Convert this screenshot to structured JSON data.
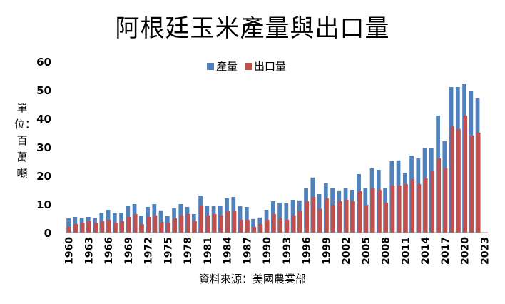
{
  "chart_data": {
    "type": "bar",
    "title": "阿根廷玉米產量與出口量",
    "ylabel": "單位：百萬噸",
    "source": "資料來源：美國農業部",
    "ylim": [
      0,
      60
    ],
    "yticks": [
      0,
      10,
      20,
      30,
      40,
      50,
      60
    ],
    "x_tick_labels": [
      "1960",
      "1963",
      "1966",
      "1969",
      "1972",
      "1975",
      "1978",
      "1981",
      "1984",
      "1987",
      "1990",
      "1993",
      "1996",
      "1999",
      "2002",
      "2005",
      "2008",
      "2011",
      "2014",
      "2017",
      "2020",
      "2023"
    ],
    "legend_position": "top",
    "categories": [
      "1960",
      "1961",
      "1962",
      "1963",
      "1964",
      "1965",
      "1966",
      "1967",
      "1968",
      "1969",
      "1970",
      "1971",
      "1972",
      "1973",
      "1974",
      "1975",
      "1976",
      "1977",
      "1978",
      "1979",
      "1980",
      "1981",
      "1982",
      "1983",
      "1984",
      "1985",
      "1986",
      "1987",
      "1988",
      "1989",
      "1990",
      "1991",
      "1992",
      "1993",
      "1994",
      "1995",
      "1996",
      "1997",
      "1998",
      "1999",
      "2000",
      "2001",
      "2002",
      "2003",
      "2004",
      "2005",
      "2006",
      "2007",
      "2008",
      "2009",
      "2010",
      "2011",
      "2012",
      "2013",
      "2014",
      "2015",
      "2016",
      "2017",
      "2018",
      "2019",
      "2020",
      "2021",
      "2022",
      "2023"
    ],
    "series": [
      {
        "name": "產量",
        "color": "#4f81bd",
        "values": [
          5.0,
          5.5,
          5.0,
          5.5,
          5.0,
          7.0,
          8.0,
          6.8,
          7.0,
          9.5,
          10.0,
          6.0,
          9.0,
          10.0,
          7.8,
          5.8,
          8.5,
          10.0,
          9.0,
          6.5,
          13.0,
          9.5,
          9.3,
          9.5,
          12.0,
          12.5,
          9.3,
          9.0,
          4.8,
          5.3,
          8.0,
          11.0,
          10.5,
          10.3,
          11.5,
          11.3,
          15.5,
          19.3,
          13.5,
          17.3,
          15.5,
          14.8,
          15.5,
          15.0,
          20.5,
          15.5,
          22.5,
          22.0,
          15.5,
          25.0,
          25.3,
          21.0,
          27.0,
          26.0,
          29.7,
          29.5,
          41.0,
          32.0,
          51.0,
          51.0,
          52.0,
          49.5,
          47.0,
          0
        ]
      },
      {
        "name": "出口量",
        "color": "#c0504d",
        "values": [
          2.0,
          3.0,
          3.5,
          4.0,
          3.5,
          4.0,
          4.5,
          3.5,
          4.0,
          5.5,
          6.5,
          3.0,
          5.5,
          6.0,
          3.8,
          3.5,
          5.0,
          6.0,
          6.5,
          4.0,
          9.5,
          6.0,
          6.5,
          6.0,
          7.5,
          7.5,
          4.5,
          4.5,
          2.0,
          3.0,
          4.5,
          6.5,
          5.0,
          4.5,
          6.0,
          7.5,
          11.0,
          12.5,
          8.3,
          12.0,
          9.8,
          11.0,
          11.5,
          11.0,
          14.5,
          9.8,
          15.5,
          15.0,
          10.5,
          16.5,
          16.5,
          17.0,
          18.8,
          17.0,
          19.0,
          21.5,
          26.0,
          22.5,
          37.3,
          36.3,
          41.0,
          34.0,
          35.0,
          0
        ]
      }
    ]
  }
}
